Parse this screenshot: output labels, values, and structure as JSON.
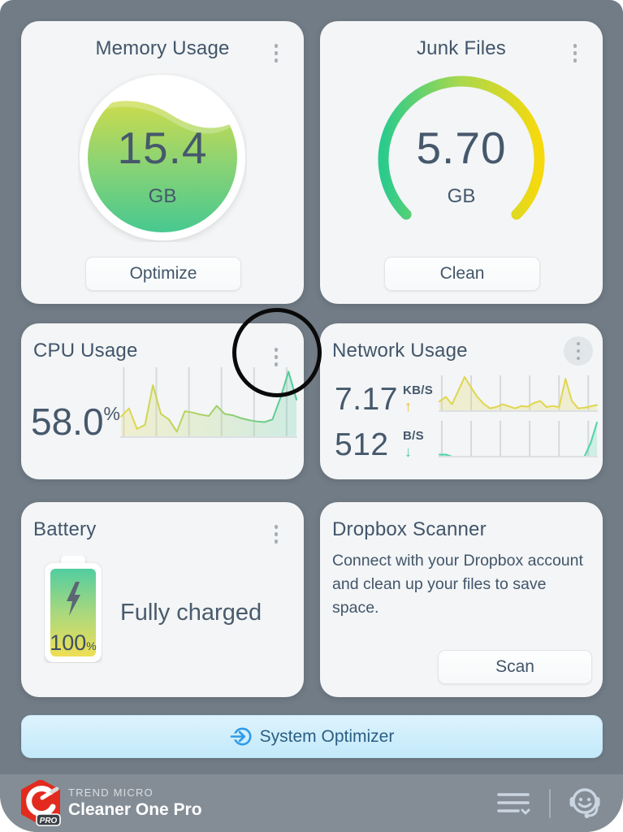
{
  "app": {
    "vendor": "TREND MICRO",
    "name": "Cleaner One Pro"
  },
  "cards": {
    "memory": {
      "title": "Memory Usage",
      "value": "15.4",
      "unit": "GB",
      "action": "Optimize"
    },
    "junk": {
      "title": "Junk Files",
      "value": "5.70",
      "unit": "GB",
      "action": "Clean"
    },
    "cpu": {
      "title": "CPU Usage",
      "value": "58.0",
      "unit": "%"
    },
    "network": {
      "title": "Network Usage",
      "upload": {
        "value": "7.17",
        "unit": "KB/S",
        "arrow": "↑"
      },
      "download": {
        "value": "512",
        "unit": "B/S",
        "arrow": "↓"
      }
    },
    "battery": {
      "title": "Battery",
      "percent": "100",
      "percent_symbol": "%",
      "status": "Fully charged"
    },
    "dropbox": {
      "title": "Dropbox Scanner",
      "description": "Connect with your Dropbox account and clean up your files to save space.",
      "action": "Scan"
    }
  },
  "system_optimizer": {
    "label": "System Optimizer"
  },
  "footer": {
    "brand_top": "TREND MICRO",
    "brand_bottom": "Cleaner One Pro",
    "logo_badge": "PRO"
  },
  "annotation": {
    "shape": "circle",
    "color": "#0A0A0A"
  },
  "colors": {
    "window_bg": "#727C86",
    "footer_bg": "#848D96",
    "card_bg": "#F3F5F6",
    "title_text": "#42556A",
    "value_text": "#46586C",
    "accent_blue": "#2E9BE8",
    "gauge_green": "#2BCB8C",
    "gauge_yellow": "#F6D90D",
    "gauge_lime": "#C8DC4A",
    "up_arrow": "#F0B429",
    "down_arrow": "#4CC793",
    "logo_red": "#E22A1E"
  },
  "icons": {
    "kebab": "vertical-3-dots",
    "sysopt": "arrow-into-circle",
    "footer_menu": "list-with-chevron",
    "footer_support": "headset-smiley",
    "battery_bolt": "lightning"
  },
  "chart_data": [
    {
      "id": "cpu-sparkline",
      "type": "area",
      "label": "CPU Usage sparkline",
      "current_value": 58.0,
      "unit": "%",
      "ylim": [
        0,
        100
      ],
      "grid": "vertical-6",
      "line_colors": [
        "#E4D84B",
        "#A8D065",
        "#4CCB9E"
      ],
      "values": [
        30,
        42,
        12,
        18,
        76,
        34,
        26,
        8,
        38,
        36,
        33,
        31,
        46,
        34,
        32,
        28,
        25,
        23,
        22,
        26,
        58,
        96,
        55
      ]
    },
    {
      "id": "net-up-sparkline",
      "type": "area",
      "label": "Network upload sparkline",
      "current_value": 7.17,
      "unit": "KB/S",
      "ylim": [
        0,
        100
      ],
      "grid": "vertical-6",
      "line_colors": [
        "#E0D64E",
        "#E0D64E"
      ],
      "values": [
        28,
        42,
        20,
        60,
        100,
        70,
        42,
        22,
        8,
        12,
        20,
        14,
        8,
        15,
        13,
        24,
        30,
        12,
        15,
        12,
        95,
        30,
        8,
        10,
        14,
        18
      ]
    },
    {
      "id": "net-down-sparkline",
      "type": "line",
      "label": "Network download sparkline",
      "current_value": 512,
      "unit": "B/S",
      "ylim": [
        0,
        100
      ],
      "grid": "vertical-6",
      "line_colors": [
        "#4FD3A6",
        "#4FD3A6"
      ],
      "values": [
        6,
        6,
        0,
        0,
        0,
        0,
        0,
        0,
        0,
        0,
        0,
        0,
        0,
        0,
        0,
        0,
        0,
        0,
        0,
        0,
        0,
        0,
        0,
        0,
        40,
        100
      ]
    }
  ]
}
